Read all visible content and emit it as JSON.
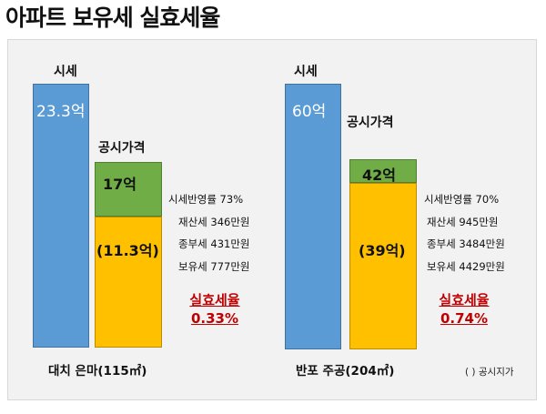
{
  "title": "아파트 보유세 실효세율",
  "footnote": "( ) 공시지가",
  "colors": {
    "market": "#5b9bd5",
    "public_top": "#70ad47",
    "public_fill": "#ffc000",
    "rate": "#c00000"
  },
  "chart_data": {
    "type": "bar",
    "title": "아파트 보유세 실효세율",
    "unit": "억",
    "groups": [
      {
        "name": "대치 은마(115㎡)",
        "market_label": "시세",
        "market_value": 23.3,
        "market_value_text": "23.3억",
        "public_label": "공시가격",
        "public_value": 17,
        "public_value_text": "17억",
        "land_value": 11.3,
        "land_value_text": "(11.3억)",
        "stats": [
          "시세반영률 73%",
          "재산세 346만원",
          "종부세 431만원",
          "보유세 777만원"
        ],
        "rate_label": "실효세율",
        "rate_value": "0.33%"
      },
      {
        "name": "반포 주공(204㎡)",
        "market_label": "시세",
        "market_value": 60,
        "market_value_text": "60억",
        "public_label": "공시가격",
        "public_value": 42,
        "public_value_text": "42억",
        "land_value": 39,
        "land_value_text": "(39억)",
        "stats": [
          "시세반영률 70%",
          "재산세 945만원",
          "종부세 3484만원",
          "보유세 4429만원"
        ],
        "rate_label": "실효세율",
        "rate_value": "0.74%"
      }
    ]
  }
}
